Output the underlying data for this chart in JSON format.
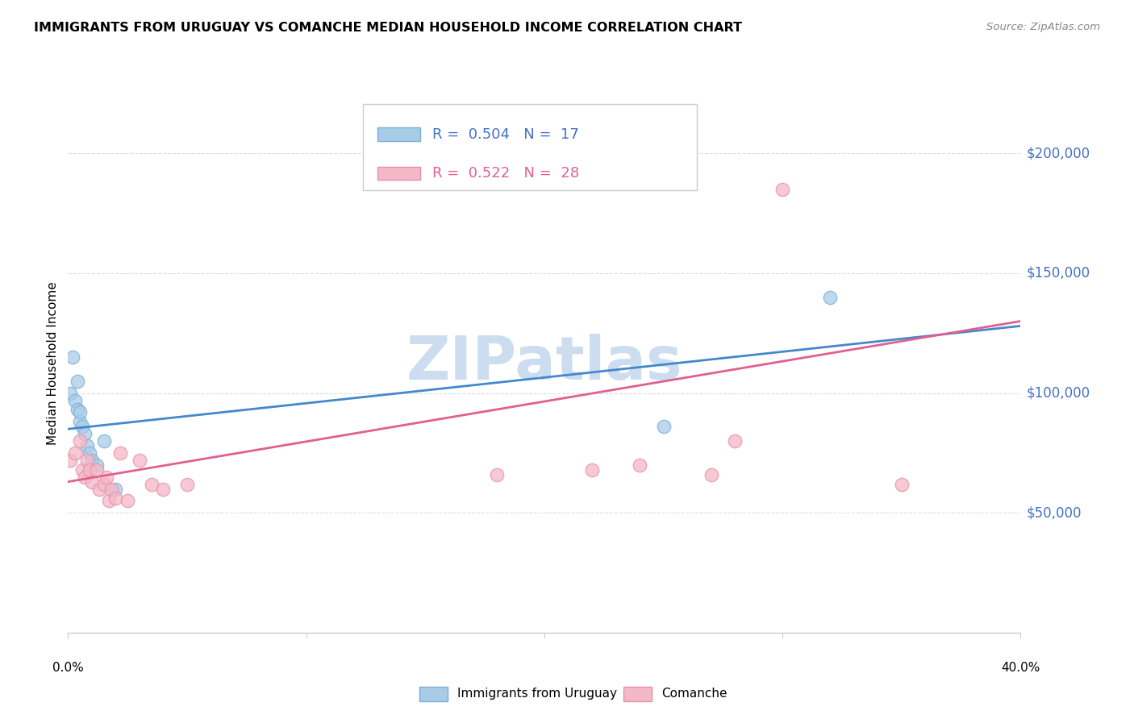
{
  "title": "IMMIGRANTS FROM URUGUAY VS COMANCHE MEDIAN HOUSEHOLD INCOME CORRELATION CHART",
  "source": "Source: ZipAtlas.com",
  "ylabel": "Median Household Income",
  "y_ticks": [
    50000,
    100000,
    150000,
    200000
  ],
  "y_tick_labels": [
    "$50,000",
    "$100,000",
    "$150,000",
    "$200,000"
  ],
  "xlim": [
    0.0,
    0.4
  ],
  "ylim": [
    0,
    225000
  ],
  "blue_R": 0.504,
  "blue_N": 17,
  "pink_R": 0.522,
  "pink_N": 28,
  "blue_color": "#a8cce8",
  "pink_color": "#f4b8c8",
  "blue_edge_color": "#7aafd4",
  "pink_edge_color": "#e890a8",
  "blue_line_color": "#4488cc",
  "pink_line_color": "#e06090",
  "axis_label_color": "#4472c4",
  "watermark": "ZIPatlas",
  "watermark_color": "#ccddf0",
  "blue_scatter_x": [
    0.001,
    0.002,
    0.003,
    0.004,
    0.004,
    0.005,
    0.005,
    0.006,
    0.007,
    0.008,
    0.009,
    0.01,
    0.012,
    0.015,
    0.02,
    0.25,
    0.32
  ],
  "blue_scatter_y": [
    100000,
    115000,
    97000,
    93000,
    105000,
    88000,
    92000,
    86000,
    83000,
    78000,
    75000,
    72000,
    70000,
    80000,
    60000,
    86000,
    140000
  ],
  "pink_scatter_x": [
    0.001,
    0.003,
    0.005,
    0.006,
    0.007,
    0.008,
    0.009,
    0.01,
    0.012,
    0.013,
    0.015,
    0.016,
    0.017,
    0.018,
    0.02,
    0.022,
    0.025,
    0.03,
    0.035,
    0.04,
    0.05,
    0.18,
    0.22,
    0.24,
    0.27,
    0.28,
    0.3,
    0.35
  ],
  "pink_scatter_y": [
    72000,
    75000,
    80000,
    68000,
    65000,
    72000,
    68000,
    63000,
    68000,
    60000,
    62000,
    65000,
    55000,
    60000,
    56000,
    75000,
    55000,
    72000,
    62000,
    60000,
    62000,
    66000,
    68000,
    70000,
    66000,
    80000,
    185000,
    62000
  ],
  "legend_label_blue": "Immigrants from Uruguay",
  "legend_label_pink": "Comanche",
  "blue_trendline_x": [
    0.0,
    0.4
  ],
  "blue_trendline_y": [
    85000,
    128000
  ],
  "pink_trendline_x": [
    0.0,
    0.4
  ],
  "pink_trendline_y": [
    63000,
    130000
  ]
}
